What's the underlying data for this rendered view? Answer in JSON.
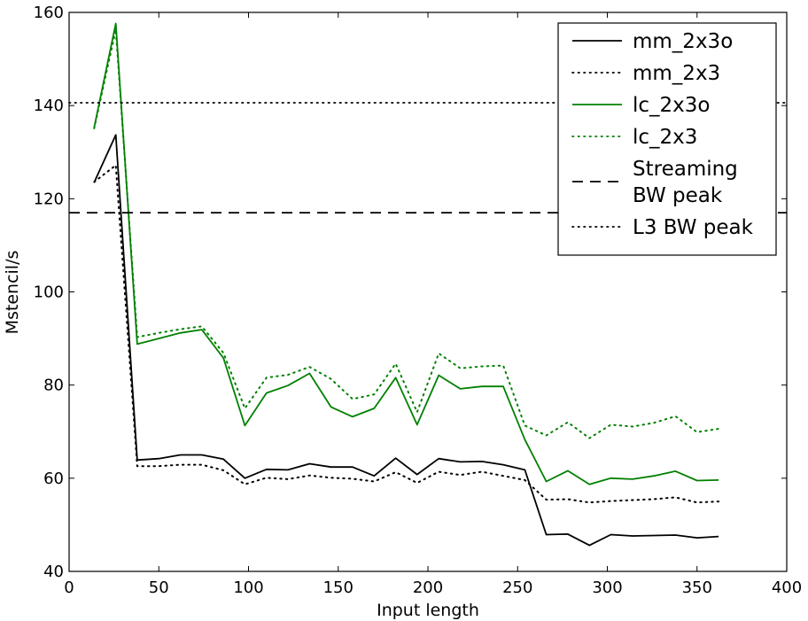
{
  "chart_data": {
    "type": "line",
    "xlabel": "Input length",
    "ylabel": "Mstencil/s",
    "xlim": [
      0,
      400
    ],
    "ylim": [
      40,
      160
    ],
    "xticks": [
      0,
      50,
      100,
      150,
      200,
      250,
      300,
      350,
      400
    ],
    "yticks": [
      40,
      60,
      80,
      100,
      120,
      140,
      160
    ],
    "grid": false,
    "legend_position": "top-right",
    "x": [
      14,
      26,
      38,
      50,
      62,
      74,
      86,
      98,
      110,
      122,
      134,
      146,
      158,
      170,
      182,
      194,
      206,
      218,
      230,
      242,
      254,
      266,
      278,
      290,
      302,
      314,
      326,
      338,
      350,
      362
    ],
    "series": [
      {
        "name": "mm_2x3o",
        "color": "#000000",
        "style": "solid",
        "values": [
          123.5,
          133.7,
          63.9,
          64.2,
          65.0,
          65.0,
          64.1,
          60.0,
          61.9,
          61.8,
          63.1,
          62.4,
          62.4,
          60.5,
          64.3,
          60.8,
          64.2,
          63.5,
          63.6,
          62.9,
          61.8,
          47.9,
          48.0,
          45.6,
          47.9,
          47.6,
          47.7,
          47.8,
          47.2,
          47.5
        ]
      },
      {
        "name": "mm_2x3",
        "color": "#000000",
        "style": "dotted",
        "values": [
          123.6,
          127.2,
          62.6,
          62.6,
          62.9,
          62.9,
          61.7,
          58.7,
          60.1,
          59.8,
          60.6,
          60.1,
          59.9,
          59.3,
          61.3,
          59.0,
          61.4,
          60.7,
          61.4,
          60.5,
          59.6,
          55.4,
          55.5,
          54.8,
          55.1,
          55.3,
          55.5,
          55.9,
          54.8,
          55.0
        ]
      },
      {
        "name": "lc_2x3o",
        "color": "#008000",
        "style": "solid",
        "values": [
          135.3,
          157.6,
          88.8,
          90.0,
          91.2,
          91.9,
          85.8,
          71.3,
          78.3,
          79.9,
          82.5,
          75.3,
          73.2,
          75.0,
          81.6,
          71.5,
          82.1,
          79.2,
          79.7,
          79.7,
          68.3,
          59.3,
          61.6,
          58.7,
          60.0,
          59.8,
          60.5,
          61.5,
          59.5,
          59.6
        ]
      },
      {
        "name": "lc_2x3",
        "color": "#008000",
        "style": "dotted",
        "values": [
          135.1,
          156.3,
          90.3,
          91.2,
          92.0,
          92.6,
          86.9,
          75.0,
          81.6,
          82.2,
          83.9,
          81.3,
          77.0,
          78.0,
          84.6,
          74.2,
          86.8,
          83.6,
          84.0,
          84.2,
          71.3,
          69.2,
          72.0,
          68.6,
          71.5,
          71.1,
          71.9,
          73.3,
          69.9,
          70.6
        ]
      }
    ],
    "reference_lines": [
      {
        "name_lines": [
          "Streaming",
          "BW peak"
        ],
        "value": 117,
        "color": "#000000",
        "style": "dashed"
      },
      {
        "name_lines": [
          "L3 BW peak"
        ],
        "value": 140.6,
        "color": "#000000",
        "style": "dotted"
      }
    ]
  }
}
